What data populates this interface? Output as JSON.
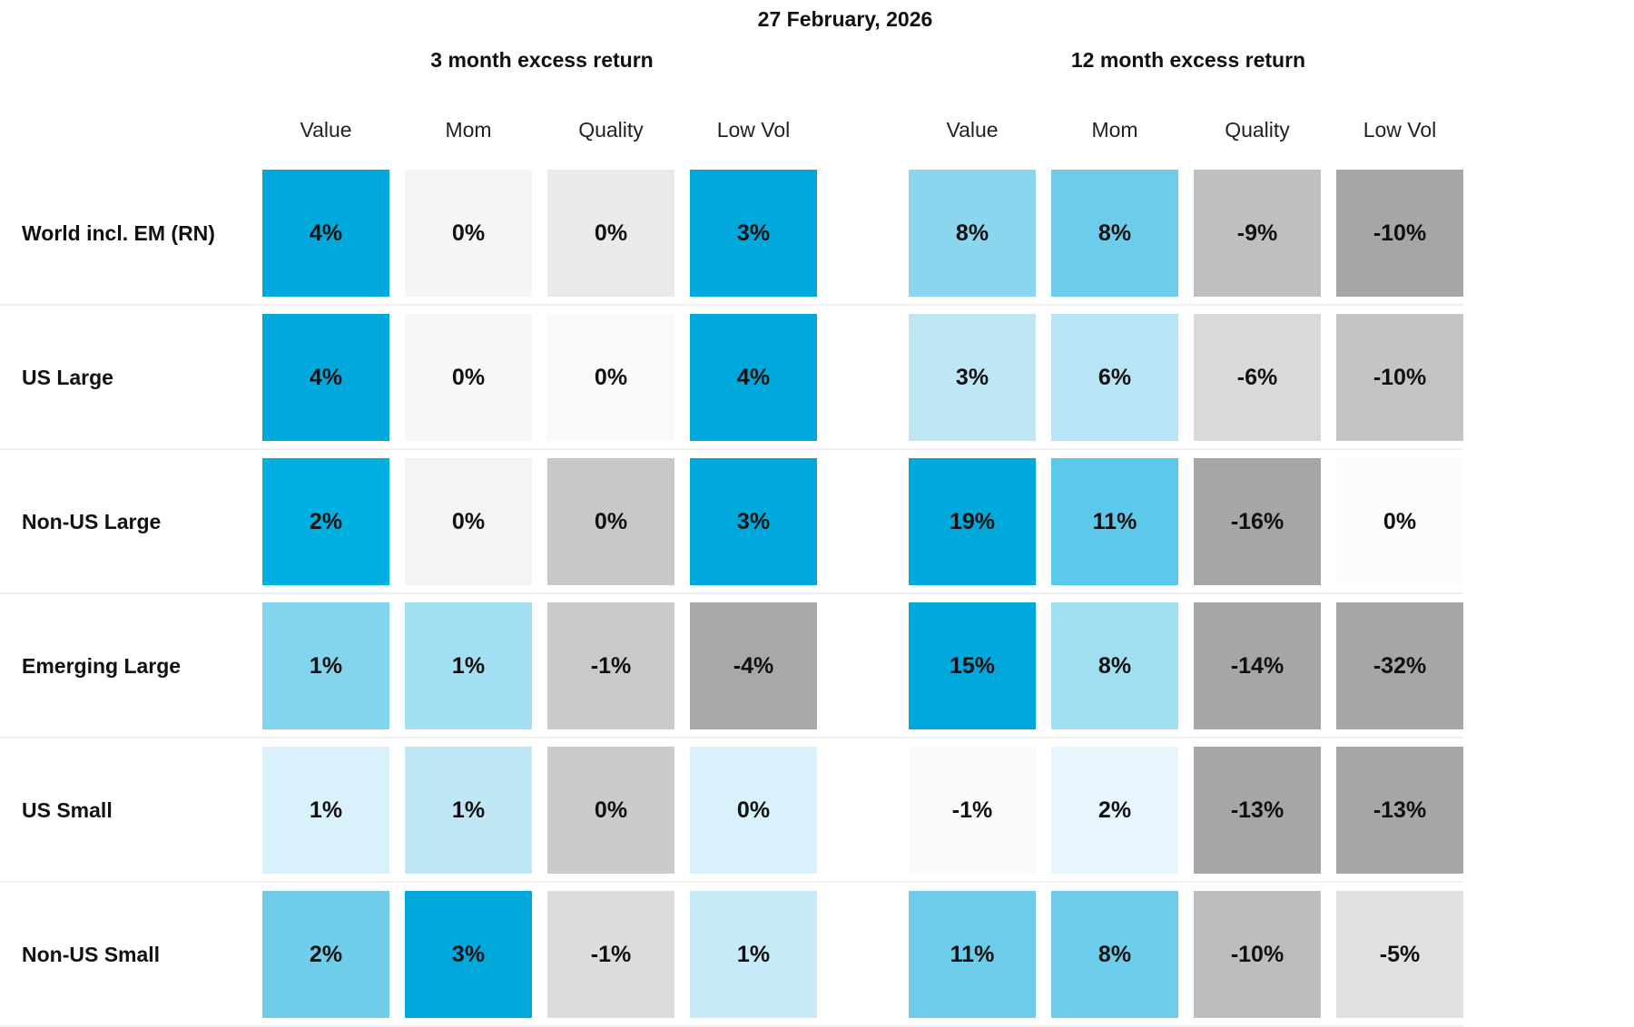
{
  "chart_data": {
    "type": "heatmap",
    "title": "27 February, 2026",
    "groups": [
      {
        "title": "3 month excess return",
        "columns": [
          "Value",
          "Mom",
          "Quality",
          "Low Vol"
        ],
        "values": [
          [
            4,
            0,
            0,
            3
          ],
          [
            4,
            0,
            0,
            4
          ],
          [
            2,
            0,
            0,
            3
          ],
          [
            1,
            1,
            -1,
            -4
          ],
          [
            1,
            1,
            0,
            0
          ],
          [
            2,
            3,
            -1,
            1
          ]
        ],
        "fills": [
          [
            "#00A8DB",
            "#F5F5F5",
            "#EAEAEA",
            "#00A8DB"
          ],
          [
            "#00A8DB",
            "#F6F6F6",
            "#F9F9F9",
            "#00A8DB"
          ],
          [
            "#00B0E0",
            "#F4F4F4",
            "#C8C8C8",
            "#00A8DB"
          ],
          [
            "#85D4EE",
            "#A3DFF2",
            "#CACACA",
            "#A8A8A8"
          ],
          [
            "#D9F1FA",
            "#BFE7F6",
            "#CBCBCB",
            "#D9F1FA"
          ],
          [
            "#70CDEA",
            "#00A8DB",
            "#DCDCDC",
            "#C6EAF7"
          ]
        ]
      },
      {
        "title": "12 month excess return",
        "columns": [
          "Value",
          "Mom",
          "Quality",
          "Low Vol"
        ],
        "values": [
          [
            8,
            8,
            -9,
            -10
          ],
          [
            3,
            6,
            -6,
            -10
          ],
          [
            19,
            11,
            -16,
            0
          ],
          [
            15,
            8,
            -14,
            -32
          ],
          [
            -1,
            2,
            -13,
            -13
          ],
          [
            11,
            8,
            -10,
            -5
          ]
        ],
        "fills": [
          [
            "#8AD6EF",
            "#6DCCEA",
            "#BFBFBF",
            "#A6A6A6"
          ],
          [
            "#BEE7F6",
            "#B8E5F5",
            "#D9D9D9",
            "#C4C4C4"
          ],
          [
            "#00A8DB",
            "#5CC9EB",
            "#A6A6A6",
            "#FCFCFC"
          ],
          [
            "#00A8DB",
            "#A0DEF1",
            "#A6A6A6",
            "#A6A6A6"
          ],
          [
            "#FAFAFA",
            "#E7F6FC",
            "#A6A6A6",
            "#A6A6A6"
          ],
          [
            "#6DCCEA",
            "#6DCCEA",
            "#BDBDBD",
            "#E0E0E0"
          ]
        ]
      }
    ],
    "rows": [
      "World incl. EM (RN)",
      "US Large",
      "Non-US Large",
      "Emerging Large",
      "US Small",
      "Non-US Small"
    ],
    "value_suffix": "%"
  }
}
